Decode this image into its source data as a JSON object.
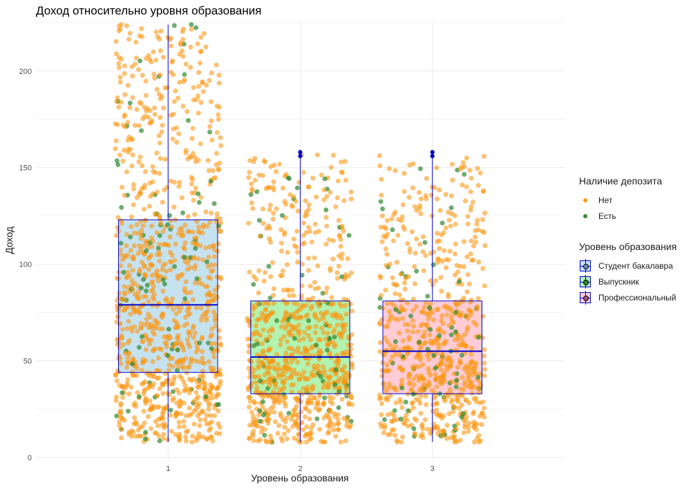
{
  "chart_data": {
    "type": "boxplot",
    "title": "Доход относительно уровня образования",
    "xlabel": "Уровень образования",
    "ylabel": "Доход",
    "categories": [
      "1",
      "2",
      "3"
    ],
    "ylim": [
      -2,
      226
    ],
    "yticks": [
      0,
      50,
      100,
      150,
      200
    ],
    "grid": true,
    "boxes": [
      {
        "category": "1",
        "q1": 44,
        "median": 79,
        "q3": 123,
        "whisker_low": 8,
        "whisker_high": 224,
        "fill": "#c6e2ef",
        "outliers": []
      },
      {
        "category": "2",
        "q1": 33,
        "median": 52,
        "q3": 81,
        "whisker_low": 8,
        "whisker_high": 155,
        "fill": "#b3f2b0",
        "outliers": [
          156,
          158
        ]
      },
      {
        "category": "3",
        "q1": 33,
        "median": 55,
        "q3": 81,
        "whisker_low": 8,
        "whisker_high": 155,
        "fill": "#ffccd5",
        "outliers": [
          156,
          158
        ]
      }
    ],
    "jitter_points": [
      {
        "category": "1",
        "count_approx": 1100,
        "range": [
          8,
          224
        ],
        "deposit_share": 0.08
      },
      {
        "category": "2",
        "count_approx": 850,
        "range": [
          8,
          160
        ],
        "deposit_share": 0.07
      },
      {
        "category": "3",
        "count_approx": 750,
        "range": [
          8,
          160
        ],
        "deposit_share": 0.08
      }
    ],
    "series": [
      {
        "name": "Нет",
        "color": "#ff9912"
      },
      {
        "name": "Есть",
        "color": "#2e8b2e"
      }
    ],
    "legend": {
      "placement": "right",
      "deposit_title": "Наличие депозита",
      "deposit_items": [
        "Нет",
        "Есть"
      ],
      "education_title": "Уровень образования",
      "education_items": [
        "Студент бакалавра",
        "Выпускник",
        "Профессиональный"
      ]
    }
  },
  "colors": {
    "box_border": "#0000cc",
    "point_no": "#ff9912",
    "point_yes": "#2e8b2e",
    "grid": "#ebebeb",
    "box_fills": [
      "#c6e2ef",
      "#b3f2b0",
      "#ffccd5"
    ]
  }
}
